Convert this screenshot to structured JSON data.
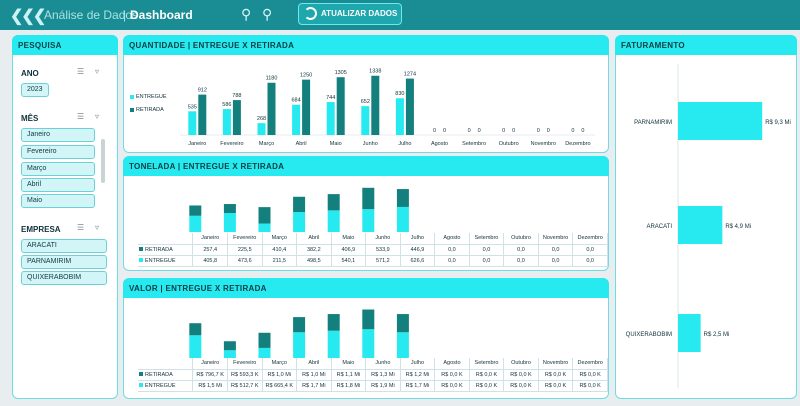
{
  "header": {
    "back_icon": "chevron-double-left-icon",
    "app_title": "Análise de Dados",
    "separator": "|",
    "page_title": "Dashboard",
    "zoom_out_icon": "zoom-out-icon",
    "zoom_in_icon": "zoom-in-icon",
    "update_button": "ATUALIZAR DADOS",
    "update_icon": "refresh-icon"
  },
  "colors": {
    "header": "#1a8c93",
    "entregue": "#27eaf0",
    "retirada": "#13807d",
    "panel_head": "#27eaf0"
  },
  "search": {
    "title": "PESQUISA",
    "ano_label": "ANO",
    "ano_items": [
      "2023"
    ],
    "mes_label": "MÊS",
    "mes_items": [
      "Janeiro",
      "Fevereiro",
      "Março",
      "Abril",
      "Maio"
    ],
    "empresa_label": "EMPRESA",
    "empresa_items": [
      "ARACATI",
      "PARNAMIRIM",
      "QUIXERABOBIM"
    ]
  },
  "qty": {
    "title": "QUANTIDADE | ENTREGUE X RETIRADA",
    "legend_entregue": "ENTREGUE",
    "legend_retirada": "RETIRADA"
  },
  "ton": {
    "title": "TONELADA | ENTREGUE X RETIRADA",
    "row_retirada": "RETIRADA",
    "row_entregue": "ENTREGUE",
    "retirada_values": [
      "257,4",
      "225,5",
      "410,4",
      "382,2",
      "406,9",
      "533,9",
      "446,9",
      "0,0",
      "0,0",
      "0,0",
      "0,0",
      "0,0"
    ],
    "entregue_values": [
      "405,8",
      "473,6",
      "211,5",
      "498,5",
      "540,1",
      "571,2",
      "626,6",
      "0,0",
      "0,0",
      "0,0",
      "0,0",
      "0,0"
    ]
  },
  "val": {
    "title": "VALOR | ENTREGUE X RETIRADA",
    "row_retirada": "RETIRADA",
    "row_entregue": "ENTREGUE",
    "retirada_values": [
      "R$ 796,7 K",
      "R$ 593,3 K",
      "R$ 1,0 Mi",
      "R$ 1,0 Mi",
      "R$ 1,1 Mi",
      "R$ 1,3 Mi",
      "R$ 1,2 Mi",
      "R$ 0,0 K",
      "R$ 0,0 K",
      "R$ 0,0 K",
      "R$ 0,0 K",
      "R$ 0,0 K"
    ],
    "entregue_values": [
      "R$ 1,5 Mi",
      "R$ 512,7 K",
      "R$ 665,4 K",
      "R$ 1,7 Mi",
      "R$ 1,8 Mi",
      "R$ 1,9 Mi",
      "R$ 1,7 Mi",
      "R$ 0,0 K",
      "R$ 0,0 K",
      "R$ 0,0 K",
      "R$ 0,0 K",
      "R$ 0,0 K"
    ]
  },
  "fat": {
    "title": "FATURAMENTO"
  },
  "chart_data": [
    {
      "type": "bar",
      "title": "QUANTIDADE | ENTREGUE X RETIRADA",
      "categories": [
        "Janeiro",
        "Fevereiro",
        "Março",
        "Abril",
        "Maio",
        "Junho",
        "Julho",
        "Agosto",
        "Setembro",
        "Outubro",
        "Novembro",
        "Dezembro"
      ],
      "series": [
        {
          "name": "ENTREGUE",
          "values": [
            535,
            586,
            268,
            684,
            744,
            652,
            830,
            0,
            0,
            0,
            0,
            0
          ]
        },
        {
          "name": "RETIRADA",
          "values": [
            912,
            788,
            1180,
            1250,
            1305,
            1338,
            1274,
            0,
            0,
            0,
            0,
            0
          ]
        }
      ],
      "legend": "left"
    },
    {
      "type": "bar",
      "stacked": true,
      "title": "TONELADA | ENTREGUE X RETIRADA",
      "categories": [
        "Janeiro",
        "Fevereiro",
        "Março",
        "Abril",
        "Maio",
        "Junho",
        "Julho",
        "Agosto",
        "Setembro",
        "Outubro",
        "Novembro",
        "Dezembro"
      ],
      "series": [
        {
          "name": "RETIRADA",
          "values": [
            257.4,
            225.5,
            410.4,
            382.2,
            406.9,
            533.9,
            446.9,
            0,
            0,
            0,
            0,
            0
          ]
        },
        {
          "name": "ENTREGUE",
          "values": [
            405.8,
            473.6,
            211.5,
            498.5,
            540.1,
            571.2,
            626.6,
            0,
            0,
            0,
            0,
            0
          ]
        }
      ]
    },
    {
      "type": "bar",
      "stacked": true,
      "title": "VALOR | ENTREGUE X RETIRADA",
      "categories": [
        "Janeiro",
        "Fevereiro",
        "Março",
        "Abril",
        "Maio",
        "Junho",
        "Julho",
        "Agosto",
        "Setembro",
        "Outubro",
        "Novembro",
        "Dezembro"
      ],
      "series": [
        {
          "name": "RETIRADA",
          "values": [
            796.7,
            593.3,
            1000,
            1000,
            1100,
            1300,
            1200,
            0,
            0,
            0,
            0,
            0
          ]
        },
        {
          "name": "ENTREGUE",
          "values": [
            1500,
            512.7,
            665.4,
            1700,
            1800,
            1900,
            1700,
            0,
            0,
            0,
            0,
            0
          ]
        }
      ],
      "unit": "R$ K"
    },
    {
      "type": "bar",
      "orientation": "horizontal",
      "title": "FATURAMENTO",
      "categories": [
        "PARNAMIRIM",
        "ARACATI",
        "QUIXERABOBIM"
      ],
      "values": [
        9.3,
        4.9,
        2.5
      ],
      "labels": [
        "R$ 9,3 Mi",
        "R$ 4,9 Mi",
        "R$ 2,5 Mi"
      ],
      "unit": "R$ Mi"
    }
  ]
}
